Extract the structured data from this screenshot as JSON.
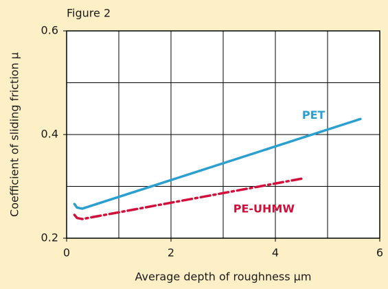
{
  "chart_data": {
    "type": "line",
    "title": "Figure 2",
    "x_label": "Average depth of roughness µm",
    "y_label": "Coefficient of sliding friction µ",
    "xlim": [
      0,
      6
    ],
    "xticks": [
      0,
      2,
      4,
      6
    ],
    "xgrid": [
      1,
      3,
      5
    ],
    "ylim": [
      0.2,
      0.6
    ],
    "yticks": [
      0.2,
      0.4,
      0.6
    ],
    "ygrid": [
      0.3,
      0.5
    ],
    "grid": true,
    "series": [
      {
        "name": "PET",
        "color": "#2a9fd0",
        "style": "solid",
        "x": [
          0.15,
          0.2,
          0.3,
          5.63
        ],
        "values": [
          0.266,
          0.259,
          0.257,
          0.43
        ]
      },
      {
        "name": "PE-UHMW",
        "color": "#d0103a",
        "style": "dashdot",
        "x": [
          0.15,
          0.2,
          0.3,
          4.51
        ],
        "values": [
          0.245,
          0.239,
          0.237,
          0.315
        ]
      }
    ]
  }
}
